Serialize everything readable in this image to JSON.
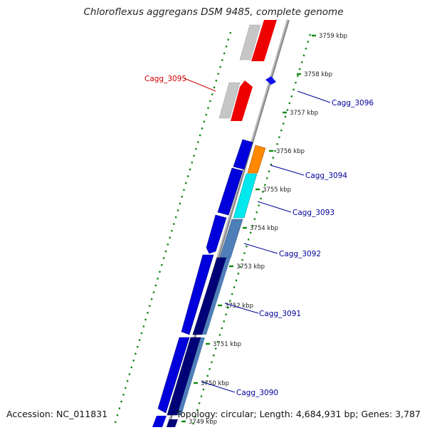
{
  "title": "Chloroflexus aggregans DSM 9485, complete genome",
  "accession_text": "Accession: NC_011831",
  "summary_text": "Topology: circular; Length: 4,684,931 bp; Genes: 3,787",
  "colors": {
    "backbone": "#999999",
    "tick_green": "#118811",
    "forward_gene": "#0000dd",
    "reverse_gene": "#ee0000",
    "pseudo_gene": "#c8c8c8",
    "label_blue": "#000099",
    "label_red": "#cc0000"
  },
  "scale_labels": [
    "3759 kbp",
    "3758 kbp",
    "3757 kbp",
    "3756 kbp",
    "3755 kbp",
    "3754 kbp",
    "3753 kbp",
    "3752 kbp",
    "3751 kbp",
    "3750 kbp",
    "3749 kbp"
  ],
  "gene_labels": [
    {
      "text": "Cagg_3095",
      "color": "red"
    },
    {
      "text": "Cagg_3096",
      "color": "blue"
    },
    {
      "text": "Cagg_3094",
      "color": "blue"
    },
    {
      "text": "Cagg_3093",
      "color": "blue"
    },
    {
      "text": "Cagg_3092",
      "color": "blue"
    },
    {
      "text": "Cagg_3091",
      "color": "blue"
    },
    {
      "text": "Cagg_3090",
      "color": "blue"
    }
  ]
}
